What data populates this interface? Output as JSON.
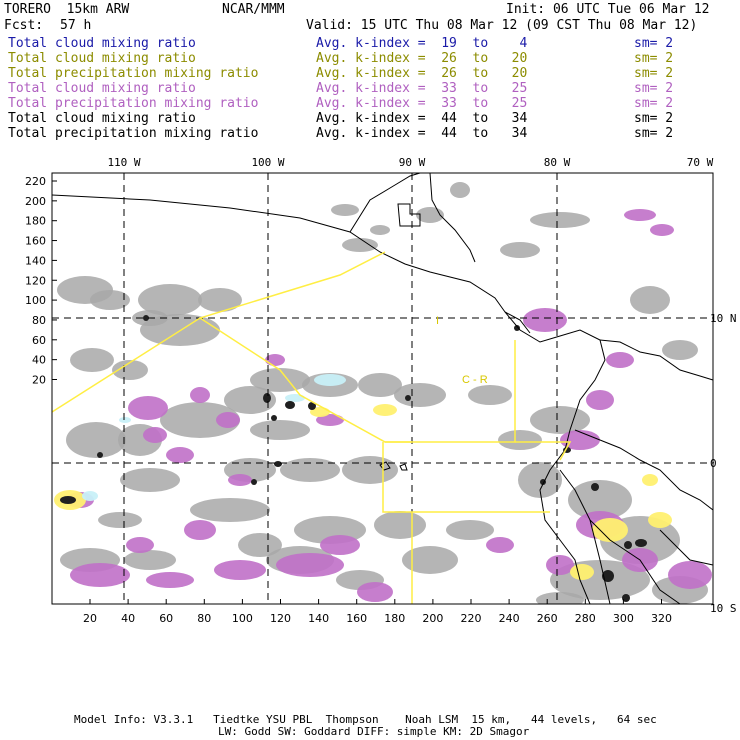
{
  "header": {
    "model": "TORERO  15km ARW",
    "org": "NCAR/MMM",
    "init": "Init: 06 UTC Tue 06 Mar 12",
    "fcst_label": "Fcst:",
    "fcst_value": "57 h",
    "valid": "Valid: 15 UTC Thu 08 Mar 12 (09 CST Thu 08 Mar 12)"
  },
  "legend": [
    {
      "field": "Total cloud mixing ratio",
      "range": "Avg. k-index =  19  to    4",
      "sm": "sm= 2",
      "color": "#1a1aa8"
    },
    {
      "field": "Total cloud mixing ratio",
      "range": "Avg. k-index =  26  to   20",
      "sm": "sm= 2",
      "color": "#8c8c00"
    },
    {
      "field": "Total precipitation mixing ratio",
      "range": "Avg. k-index =  26  to   20",
      "sm": "sm= 2",
      "color": "#8c8c00"
    },
    {
      "field": "Total cloud mixing ratio",
      "range": "Avg. k-index =  33  to   25",
      "sm": "sm= 2",
      "color": "#b060c0"
    },
    {
      "field": "Total precipitation mixing ratio",
      "range": "Avg. k-index =  33  to   25",
      "sm": "sm= 2",
      "color": "#b060c0"
    },
    {
      "field": "Total cloud mixing ratio",
      "range": "Avg. k-index =  44  to   34",
      "sm": "sm= 2",
      "color": "#000000"
    },
    {
      "field": "Total precipitation mixing ratio",
      "range": "Avg. k-index =  44  to   34",
      "sm": "sm= 2",
      "color": "#000000"
    }
  ],
  "map": {
    "lon_labels": [
      "110 W",
      "100 W",
      "90 W",
      "80 W",
      "70 W"
    ],
    "lat_labels": [
      "10 N",
      "0",
      "10 S"
    ],
    "y_ticks": [
      "220",
      "200",
      "180",
      "160",
      "140",
      "120",
      "100",
      "80",
      "60",
      "40",
      "20"
    ],
    "x_ticks": [
      "20",
      "40",
      "60",
      "80",
      "100",
      "120",
      "140",
      "160",
      "180",
      "200",
      "220",
      "240",
      "260",
      "280",
      "300",
      "320"
    ],
    "region_labels": [
      "I",
      "C - R"
    ],
    "colors": {
      "gray_cloud": "#a8a8a8",
      "purple_precip": "#c070c8",
      "yellow_cloud": "#fff070",
      "cyan_cloud": "#c8f0f8",
      "black_core": "#202020",
      "boundary": "#ffee44",
      "coast": "#000000"
    }
  },
  "footer": {
    "line1": "Model Info: V3.3.1   Tiedtke YSU PBL  Thompson    Noah LSM  15 km,   44 levels,   64 sec",
    "line2": "LW: Godd SW: Goddard DIFF: simple KM: 2D Smagor"
  }
}
